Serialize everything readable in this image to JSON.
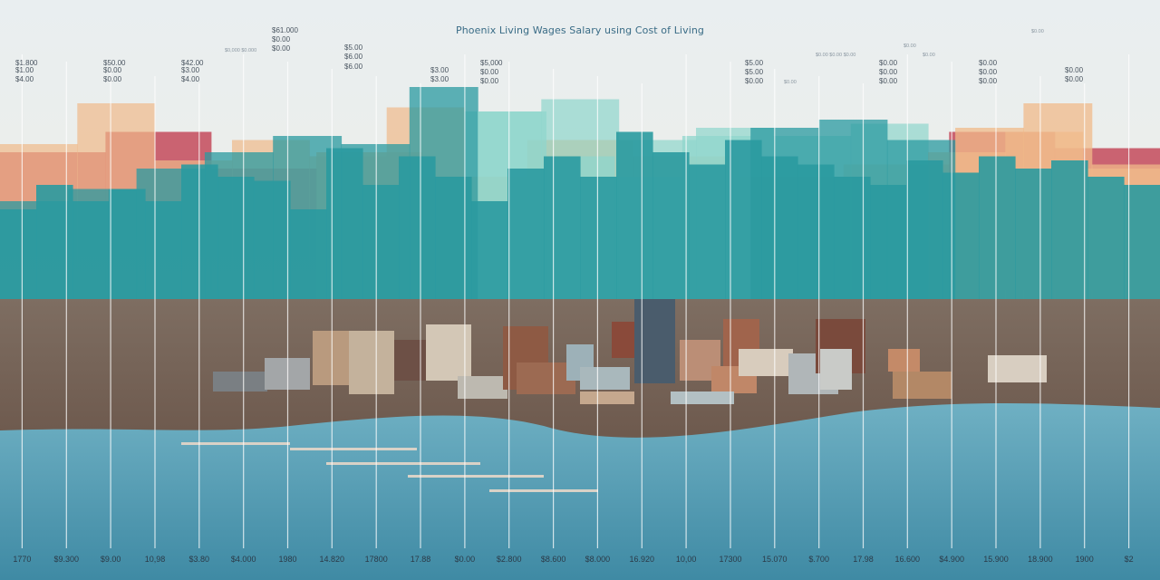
{
  "chart_data": {
    "type": "bar",
    "title": "Phoenix Living Wages Salary using Cost of Living",
    "x_tick_labels": [
      "1770",
      "$9.300",
      "$9.00",
      "10,98",
      "$3.80",
      "$4.000",
      "1980",
      "14.820",
      "17800",
      "17.88",
      "$0.00",
      "$2.800",
      "$8.600",
      "$8.000",
      "16.920",
      "10,00",
      "17300",
      "15.070",
      "$.700",
      "17.98",
      "16.600",
      "$4.900",
      "15.900",
      "18.900",
      "1900",
      "$2"
    ],
    "value_labels": [
      {
        "text": "$1.800",
        "pos": [
          17,
          72
        ]
      },
      {
        "text": "$1.00",
        "pos": [
          17,
          80
        ]
      },
      {
        "text": "$4.00",
        "pos": [
          17,
          90
        ]
      },
      {
        "text": "$50.00",
        "pos": [
          114,
          72
        ]
      },
      {
        "text": "$0.00",
        "pos": [
          114,
          80
        ]
      },
      {
        "text": "$0.00",
        "pos": [
          114,
          90
        ]
      },
      {
        "text": "$42.00",
        "pos": [
          200,
          72
        ]
      },
      {
        "text": "$3.00",
        "pos": [
          200,
          80
        ]
      },
      {
        "text": "$4.00",
        "pos": [
          200,
          90
        ]
      },
      {
        "text": "$61.000",
        "pos": [
          300,
          36
        ]
      },
      {
        "text": "$0.00",
        "pos": [
          300,
          46
        ]
      },
      {
        "text": "$0.00",
        "pos": [
          300,
          56
        ]
      },
      {
        "text": "$5.00",
        "pos": [
          380,
          55
        ]
      },
      {
        "text": "$6.00",
        "pos": [
          380,
          65
        ]
      },
      {
        "text": "$6.00",
        "pos": [
          380,
          76
        ]
      },
      {
        "text": "$3.00",
        "pos": [
          475,
          80
        ]
      },
      {
        "text": "$3.00",
        "pos": [
          475,
          90
        ]
      },
      {
        "text": "$5,000",
        "pos": [
          530,
          72
        ]
      },
      {
        "text": "$0.00",
        "pos": [
          530,
          82
        ]
      },
      {
        "text": "$0.00",
        "pos": [
          530,
          92
        ]
      },
      {
        "text": "$5.00",
        "pos": [
          822,
          72
        ]
      },
      {
        "text": "$5.00",
        "pos": [
          822,
          82
        ]
      },
      {
        "text": "$0.00",
        "pos": [
          822,
          92
        ]
      },
      {
        "text": "$0.00",
        "pos": [
          970,
          72
        ]
      },
      {
        "text": "$0.00",
        "pos": [
          970,
          82
        ]
      },
      {
        "text": "$0.00",
        "pos": [
          970,
          92
        ]
      },
      {
        "text": "$0.00",
        "pos": [
          1080,
          72
        ]
      },
      {
        "text": "$0.00",
        "pos": [
          1080,
          82
        ]
      },
      {
        "text": "$0.00",
        "pos": [
          1080,
          92
        ]
      },
      {
        "text": "$0.00",
        "pos": [
          1175,
          80
        ]
      },
      {
        "text": "$0.00",
        "pos": [
          1175,
          90
        ]
      }
    ],
    "tiny_labels": [
      {
        "text": "$0,000 $0.000",
        "pos": [
          248,
          57
        ]
      },
      {
        "text": "$0.00",
        "pos": [
          865,
          92
        ]
      },
      {
        "text": "$0.00 $0.00 $0.00",
        "pos": [
          900,
          62
        ]
      },
      {
        "text": "$0.00",
        "pos": [
          997,
          52
        ]
      },
      {
        "text": "$0.00",
        "pos": [
          1018,
          62
        ]
      },
      {
        "text": "$0.00",
        "pos": [
          1138,
          36
        ]
      }
    ],
    "series": [
      {
        "name": "",
        "values": [
          180,
          205,
          160,
          180,
          150,
          195,
          175,
          150,
          165,
          205,
          185
        ]
      },
      {
        "name": "",
        "values": [
          190,
          240,
          170,
          195,
          175,
          235,
          230,
          245,
          195,
          210,
          200,
          215,
          180,
          205,
          160
        ]
      },
      {
        "name": "",
        "values": [
          120,
          135,
          160,
          180,
          200,
          190,
          260,
          230,
          175,
          150,
          200,
          210,
          220,
          195,
          210,
          240,
          165
        ]
      },
      {
        "name": "",
        "values": [
          110,
          140,
          120,
          135,
          120,
          165,
          150,
          145,
          110,
          185,
          140,
          175,
          150,
          120,
          160,
          175,
          150,
          205,
          180,
          165,
          195,
          175,
          165,
          150,
          140,
          170,
          155,
          175,
          160,
          170,
          150,
          140
        ]
      }
    ],
    "ylim": [
      0,
      300
    ],
    "colors": {
      "red": "#c44a5c",
      "peach": "#f0b98a",
      "teal": "#2a9aa0",
      "mint": "#8fd6cc",
      "sky": "#e6eef2",
      "water": "#5aa6ba"
    }
  }
}
